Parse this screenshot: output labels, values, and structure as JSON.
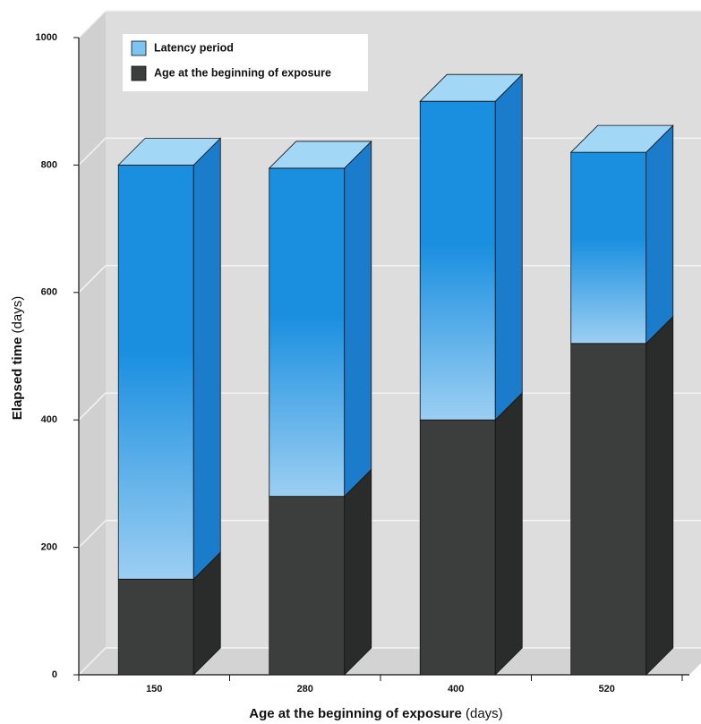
{
  "chart_data": {
    "type": "bar3d_stacked",
    "categories": [
      "150",
      "280",
      "400",
      "520"
    ],
    "series": [
      {
        "name": "Age at the beginning of exposure",
        "color": "#3b3e3d",
        "values": [
          150,
          280,
          400,
          520
        ]
      },
      {
        "name": "Latency period",
        "color": "#1a8fe0",
        "values": [
          650,
          515,
          500,
          300
        ]
      }
    ],
    "x_label": {
      "text": "Age at the beginning of exposure",
      "unit": "(days)"
    },
    "y_label": {
      "text": "Elapsed time",
      "unit": "(days)"
    },
    "ylim": [
      0,
      1000
    ],
    "yticks": [
      0,
      200,
      400,
      600,
      800,
      1000
    ],
    "grid": true,
    "legend": "upper left"
  }
}
